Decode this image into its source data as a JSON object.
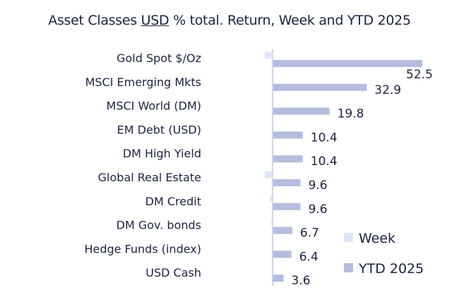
{
  "chart_data": {
    "type": "bar",
    "orientation": "horizontal",
    "title_parts": [
      "Asset Classes ",
      "USD",
      " % total. Return, Week and YTD 2025"
    ],
    "categories": [
      "Gold Spot   $/Oz",
      "MSCI Emerging Mkts",
      "MSCI World (DM)",
      "EM Debt (USD)",
      "DM High Yield",
      "Global Real Estate",
      "DM Credit",
      "DM Gov. bonds",
      "Hedge Funds (index)",
      "USD Cash"
    ],
    "series": [
      {
        "name": "Week",
        "color": "#dde6f7",
        "values": [
          -2.7,
          0.3,
          0.0,
          0.2,
          0.0,
          -2.7,
          -0.9,
          -0.5,
          0.0,
          0.0
        ]
      },
      {
        "name": "YTD 2025",
        "color": "#b4bddd",
        "values": [
          52.5,
          32.9,
          19.8,
          10.4,
          10.4,
          9.6,
          9.6,
          6.7,
          6.4,
          3.6
        ]
      }
    ],
    "data_labels": [
      "52.5",
      "32.9",
      "19.8",
      "10.4",
      "10.4",
      "9.6",
      "9.6",
      "6.7",
      "6.4",
      "3.6"
    ],
    "axis_color": "#c5d6f2",
    "legend_position": "bottom-right",
    "grid": false
  }
}
